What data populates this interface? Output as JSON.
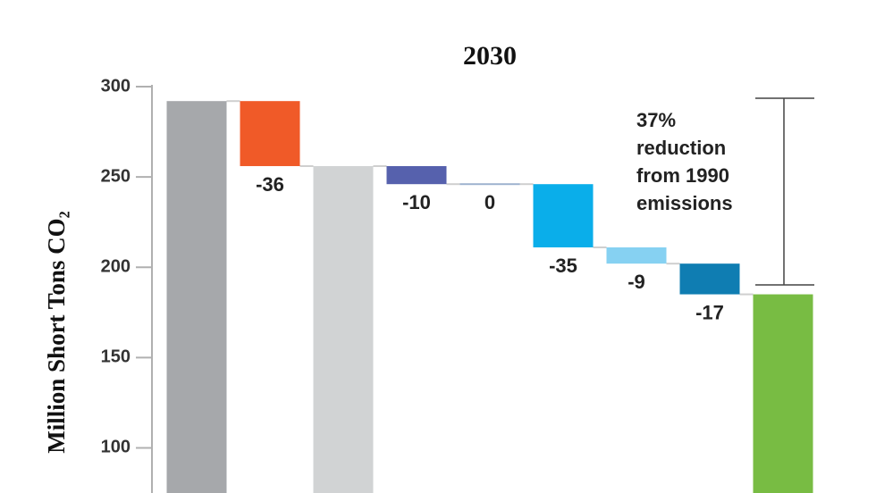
{
  "chart_data": {
    "type": "waterfall",
    "title": "2030",
    "y_label": "Million Short Tons CO₂",
    "values": [
      292,
      -36,
      256,
      -10,
      0,
      -35,
      -9,
      -17,
      185
    ],
    "totals": [
      true,
      false,
      true,
      false,
      false,
      false,
      false,
      false,
      true
    ],
    "colors": [
      "#a6a8ab",
      "#f05a28",
      "#d1d3d4",
      "#5661ad",
      "#9fb3cf",
      "#0aaeea",
      "#86d1f2",
      "#0f7db2",
      "#78bc43"
    ],
    "ylim": [
      75,
      300
    ],
    "yticks": [
      100,
      150,
      200,
      250,
      300
    ],
    "annotation": [
      "37%",
      "reduction",
      "from 1990",
      "emissions"
    ]
  }
}
